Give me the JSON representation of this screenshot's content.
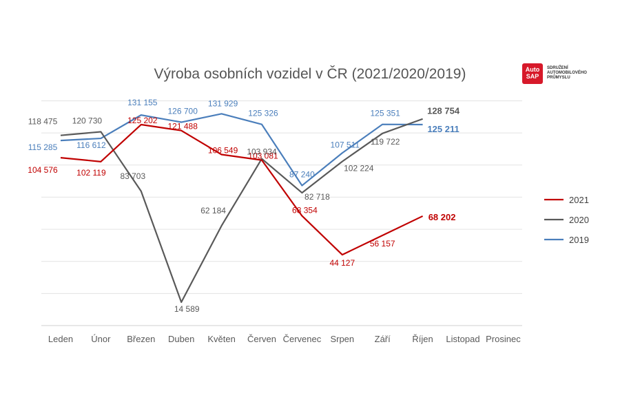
{
  "title": "Výroba osobních vozidel v ČR (2021/2020/2019)",
  "logo": {
    "badge_line1": "Auto",
    "badge_line2": "SAP",
    "org_lines": [
      "SDRUŽENÍ",
      "AUTOMOBILOVÉHO",
      "PRŮMYSLU"
    ]
  },
  "chart_data": {
    "type": "line",
    "title": "Výroba osobních vozidel v ČR (2021/2020/2019)",
    "categories": [
      "Leden",
      "Únor",
      "Březen",
      "Duben",
      "Květen",
      "Červen",
      "Červenec",
      "Srpen",
      "Září",
      "Říjen",
      "Listopad",
      "Prosinec"
    ],
    "xlabel": "",
    "ylabel": "",
    "ylim": [
      0,
      140000
    ],
    "grid": true,
    "legend_position": "right",
    "series": [
      {
        "name": "2021",
        "color": "#c00000",
        "values": [
          104576,
          102119,
          125202,
          121488,
          106549,
          103081,
          68354,
          44127,
          56157,
          68202,
          null,
          null
        ],
        "labels": [
          "104 576",
          "102 119",
          "125 202",
          "121 488",
          "106 549",
          "103 081",
          "68 354",
          "44 127",
          "56 157",
          "68 202",
          "",
          ""
        ]
      },
      {
        "name": "2020",
        "color": "#595959",
        "values": [
          118475,
          120730,
          83703,
          14589,
          62184,
          103934,
          82718,
          102224,
          119722,
          128754,
          null,
          null
        ],
        "labels": [
          "118 475",
          "120 730",
          "83 703",
          "14 589",
          "62 184",
          "103 934",
          "82 718",
          "102 224",
          "119 722",
          "128 754",
          "",
          ""
        ]
      },
      {
        "name": "2019",
        "color": "#4a7ebb",
        "values": [
          115285,
          116612,
          131155,
          126700,
          131929,
          125326,
          87240,
          107511,
          125351,
          125211,
          null,
          null
        ],
        "labels": [
          "115 285",
          "116 612",
          "131 155",
          "126 700",
          "131 929",
          "125 326",
          "87 240",
          "107 511",
          "125 351",
          "125 211",
          "",
          ""
        ]
      }
    ]
  }
}
